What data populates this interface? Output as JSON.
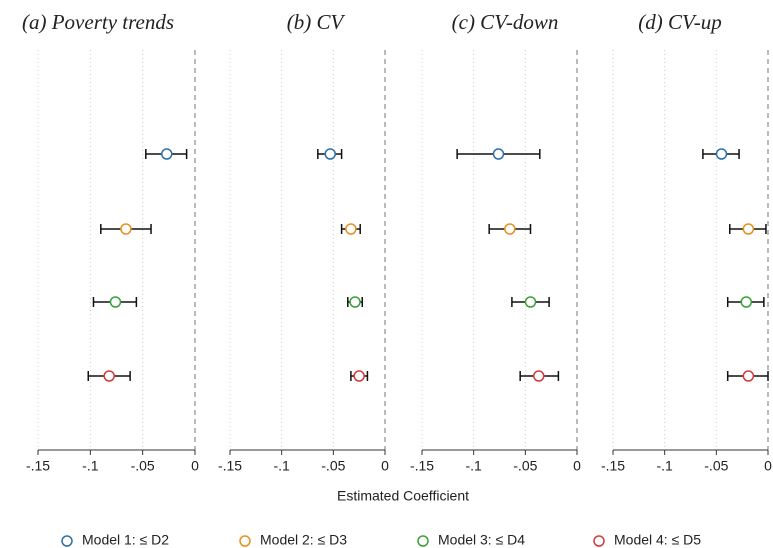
{
  "x_label": "Estimated Coefficient",
  "legend": [
    {
      "name": "Model 1: ≤  D2",
      "color": "#2e6fa8"
    },
    {
      "name": "Model 2: ≤  D3",
      "color": "#e8901e"
    },
    {
      "name": "Model 3: ≤  D4",
      "color": "#3aa03a"
    },
    {
      "name": "Model 4: ≤  D5",
      "color": "#d33a3a"
    }
  ],
  "chart_data": [
    {
      "type": "coefplot",
      "title": "(a) Poverty trends",
      "values": [
        -0.027,
        -0.066,
        -0.076,
        -0.082
      ],
      "lower": [
        -0.047,
        -0.09,
        -0.097,
        -0.102
      ],
      "upper": [
        -0.008,
        -0.042,
        -0.056,
        -0.062
      ],
      "xlim": [
        -0.15,
        0
      ],
      "xticks": [
        {
          "value": -0.15,
          "label": "-.15"
        },
        {
          "value": -0.1,
          "label": "-.1"
        },
        {
          "value": -0.05,
          "label": "-.05"
        },
        0
      ]
    },
    {
      "type": "coefplot",
      "title": "(b) CV",
      "values": [
        -0.053,
        -0.033,
        -0.029,
        -0.025
      ],
      "lower": [
        -0.065,
        -0.042,
        -0.036,
        -0.033
      ],
      "upper": [
        -0.042,
        -0.024,
        -0.022,
        -0.017
      ],
      "xlim": [
        -0.15,
        0
      ],
      "xticks": [
        {
          "value": -0.15,
          "label": "-.15"
        },
        {
          "value": -0.1,
          "label": "-.1"
        },
        {
          "value": -0.05,
          "label": "-.05"
        },
        0
      ]
    },
    {
      "type": "coefplot",
      "title": "(c) CV-down",
      "values": [
        -0.076,
        -0.065,
        -0.045,
        -0.037
      ],
      "lower": [
        -0.116,
        -0.085,
        -0.063,
        -0.055
      ],
      "upper": [
        -0.036,
        -0.045,
        -0.027,
        -0.018
      ],
      "xlim": [
        -0.15,
        0
      ],
      "xticks": [
        {
          "value": -0.15,
          "label": "-.15"
        },
        {
          "value": -0.1,
          "label": "-.1"
        },
        {
          "value": -0.05,
          "label": "-.05"
        },
        0
      ]
    },
    {
      "type": "coefplot",
      "title": "(d) CV-up",
      "values": [
        -0.045,
        -0.019,
        -0.021,
        -0.019
      ],
      "lower": [
        -0.063,
        -0.037,
        -0.039,
        -0.039
      ],
      "upper": [
        -0.028,
        -0.002,
        -0.004,
        0
      ],
      "xlim": [
        -0.15,
        0
      ],
      "xticks": [
        {
          "value": -0.15,
          "label": "-.15"
        },
        {
          "value": -0.1,
          "label": "-.1"
        },
        {
          "value": -0.05,
          "label": "-.05"
        },
        0
      ]
    }
  ]
}
